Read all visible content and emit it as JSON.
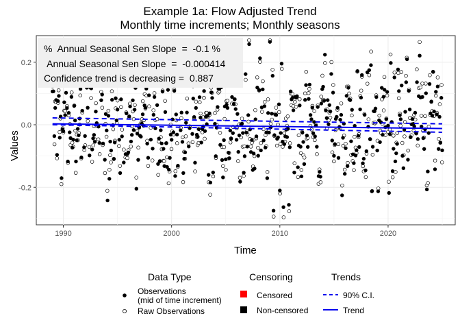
{
  "chart_data": {
    "type": "scatter",
    "title": "Example 1a: Flow Adjusted Trend",
    "subtitle": "Monthly time increments; Monthly seasons",
    "xlabel": "Time",
    "ylabel": "Values",
    "xlim": [
      1987.5,
      2026.2
    ],
    "ylim": [
      -0.32,
      0.285
    ],
    "x_ticks": [
      1990,
      2000,
      2010,
      2020
    ],
    "x_tick_labels": [
      "1990",
      "2000",
      "2010",
      "2020"
    ],
    "y_ticks": [
      -0.2,
      0.0,
      0.2
    ],
    "y_tick_labels": [
      "-0.2",
      "0.0",
      "0.2"
    ],
    "grid": true,
    "x_range_data": [
      1989.0,
      2025.0
    ],
    "scatter_summary": {
      "observations_mid_increment": "monthly points 1989-2025, mostly between -0.25 and 0.25",
      "raw_observations": "open circles, same range"
    },
    "trend": {
      "name": "Trend",
      "x": [
        1989.0,
        2025.0
      ],
      "y": [
        0.003,
        -0.012
      ]
    },
    "ci_upper": {
      "name": "90% C.I.",
      "x": [
        1989.0,
        2025.0
      ],
      "y": [
        0.022,
        0.003
      ]
    },
    "ci_lower": {
      "name": "90% C.I.",
      "x": [
        1989.0,
        2025.0
      ],
      "y": [
        0.0,
        -0.024
      ]
    },
    "annotation": [
      "%  Annual Seasonal Sen Slope  =  -0.1 %",
      " Annual Seasonal Sen Slope  =  -0.000414",
      "Confidence trend is decreasing =  0.887"
    ],
    "legend": {
      "placement": "bottom",
      "data_type": {
        "title": "Data Type",
        "items": [
          "Observations\n(mid of time increment)",
          "Raw Observations"
        ]
      },
      "censoring": {
        "title": "Censoring",
        "items": [
          "Censored",
          "Non-censored"
        ],
        "colors": [
          "#ff0000",
          "#000000"
        ]
      },
      "trends": {
        "title": "Trends",
        "items": [
          "90% C.I.",
          "Trend"
        ],
        "color": "#0000ee"
      }
    }
  }
}
